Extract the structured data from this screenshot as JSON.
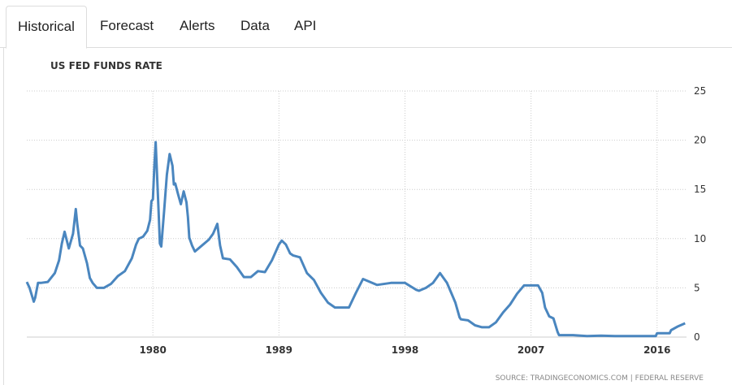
{
  "tabs": [
    {
      "label": "Historical",
      "active": true
    },
    {
      "label": "Forecast",
      "active": false
    },
    {
      "label": "Alerts",
      "active": false
    },
    {
      "label": "Data",
      "active": false
    },
    {
      "label": "API",
      "active": false
    }
  ],
  "colors": {
    "line": "#4a86bf",
    "grid": "#cccccc"
  },
  "chart_data": {
    "type": "line",
    "title": "US FED FUNDS RATE",
    "source": "SOURCE: TRADINGECONOMICS.COM | FEDERAL RESERVE",
    "xlim": [
      1971,
      2018.1
    ],
    "ylim": [
      0,
      25
    ],
    "y_ticks": [
      0,
      5,
      10,
      15,
      20,
      25
    ],
    "x_ticks": [
      1980,
      1989,
      1998,
      2007,
      2016
    ],
    "grid": true,
    "y_axis_position": "right",
    "series": [
      {
        "x": [
          1971.0,
          1971.2,
          1971.5,
          1971.6,
          1971.8,
          1972.0,
          1972.5,
          1973.0,
          1973.3,
          1973.5,
          1973.7,
          1974.0,
          1974.3,
          1974.5,
          1974.6,
          1974.8,
          1975.0,
          1975.3,
          1975.5,
          1975.7,
          1976.0,
          1976.5,
          1977.0,
          1977.5,
          1978.0,
          1978.5,
          1978.8,
          1979.0,
          1979.3,
          1979.6,
          1979.8,
          1979.9,
          1980.0,
          1980.1,
          1980.2,
          1980.4,
          1980.5,
          1980.6,
          1980.8,
          1981.0,
          1981.2,
          1981.4,
          1981.5,
          1981.6,
          1981.8,
          1982.0,
          1982.2,
          1982.4,
          1982.5,
          1982.6,
          1982.8,
          1983.0,
          1983.5,
          1984.0,
          1984.3,
          1984.6,
          1984.8,
          1985.0,
          1985.5,
          1986.0,
          1986.5,
          1987.0,
          1987.5,
          1988.0,
          1988.5,
          1989.0,
          1989.2,
          1989.5,
          1989.8,
          1990.0,
          1990.5,
          1991.0,
          1991.5,
          1992.0,
          1992.5,
          1993.0,
          1993.5,
          1994.0,
          1994.5,
          1995.0,
          1995.5,
          1996.0,
          1997.0,
          1998.0,
          1998.8,
          1999.0,
          1999.5,
          2000.0,
          2000.5,
          2001.0,
          2001.3,
          2001.6,
          2001.9,
          2002.0,
          2002.5,
          2003.0,
          2003.5,
          2004.0,
          2004.5,
          2005.0,
          2005.5,
          2006.0,
          2006.5,
          2007.0,
          2007.5,
          2007.8,
          2008.0,
          2008.3,
          2008.6,
          2008.9,
          2009.0,
          2010.0,
          2011.0,
          2012.0,
          2013.0,
          2014.0,
          2015.0,
          2015.9,
          2016.0,
          2016.9,
          2017.0,
          2017.5,
          2018.0
        ],
        "y": [
          5.6,
          5.0,
          3.6,
          4.0,
          5.5,
          5.5,
          5.6,
          6.5,
          7.8,
          9.5,
          10.7,
          9.0,
          10.5,
          13.0,
          11.5,
          9.3,
          9.0,
          7.5,
          6.0,
          5.5,
          5.0,
          5.0,
          5.4,
          6.2,
          6.7,
          8.0,
          9.4,
          10.0,
          10.2,
          10.8,
          11.9,
          13.8,
          14.0,
          17.2,
          19.8,
          13.0,
          9.5,
          9.2,
          12.8,
          16.5,
          18.6,
          17.4,
          15.5,
          15.6,
          14.5,
          13.5,
          14.8,
          13.7,
          12.2,
          10.1,
          9.3,
          8.7,
          9.3,
          9.9,
          10.5,
          11.5,
          9.3,
          8.0,
          7.9,
          7.1,
          6.1,
          6.1,
          6.7,
          6.6,
          7.8,
          9.4,
          9.8,
          9.4,
          8.5,
          8.3,
          8.1,
          6.5,
          5.8,
          4.5,
          3.5,
          3.0,
          3.0,
          3.0,
          4.5,
          5.9,
          5.6,
          5.3,
          5.5,
          5.5,
          4.8,
          4.7,
          5.0,
          5.5,
          6.5,
          5.5,
          4.5,
          3.5,
          2.0,
          1.8,
          1.7,
          1.2,
          1.0,
          1.0,
          1.5,
          2.5,
          3.3,
          4.4,
          5.25,
          5.25,
          5.25,
          4.5,
          3.0,
          2.1,
          1.9,
          0.5,
          0.2,
          0.2,
          0.1,
          0.15,
          0.1,
          0.1,
          0.1,
          0.1,
          0.4,
          0.4,
          0.7,
          1.1,
          1.4
        ]
      }
    ]
  }
}
